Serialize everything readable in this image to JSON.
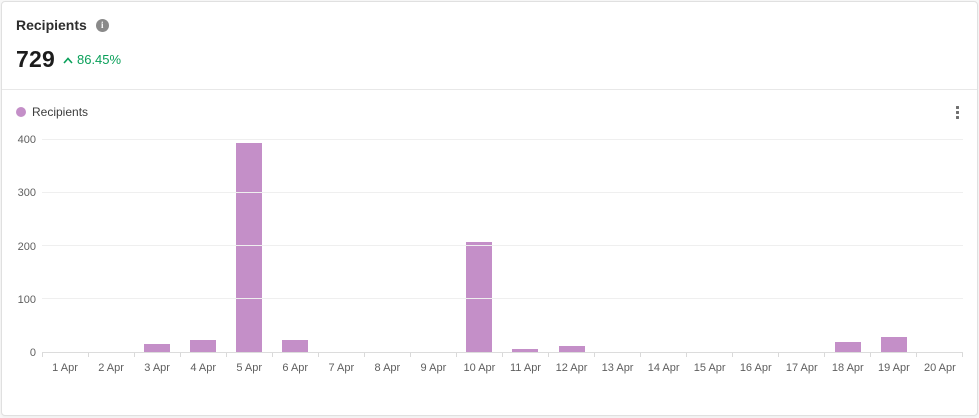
{
  "header": {
    "title": "Recipients",
    "metric_value": "729",
    "trend_direction": "up",
    "trend_value": "86.45%"
  },
  "legend": {
    "label": "Recipients"
  },
  "chart_data": {
    "type": "bar",
    "series_name": "Recipients",
    "categories": [
      "1 Apr",
      "2 Apr",
      "3 Apr",
      "4 Apr",
      "5 Apr",
      "6 Apr",
      "7 Apr",
      "8 Apr",
      "9 Apr",
      "10 Apr",
      "11 Apr",
      "12 Apr",
      "13 Apr",
      "14 Apr",
      "15 Apr",
      "16 Apr",
      "17 Apr",
      "18 Apr",
      "19 Apr",
      "20 Apr"
    ],
    "values": [
      0,
      0,
      16,
      23,
      395,
      22,
      0,
      0,
      0,
      208,
      5,
      12,
      0,
      0,
      0,
      0,
      0,
      19,
      29,
      0
    ],
    "title": "",
    "xlabel": "",
    "ylabel": "",
    "ylim": [
      0,
      400
    ],
    "yticks": [
      0,
      100,
      200,
      300,
      400
    ],
    "grid": true,
    "legend_position": "top-left",
    "bar_color": "#c48fc8"
  },
  "colors": {
    "bar": "#c48fc8",
    "trend_green": "#0aa05a",
    "card_border": "#e0e0e0"
  }
}
